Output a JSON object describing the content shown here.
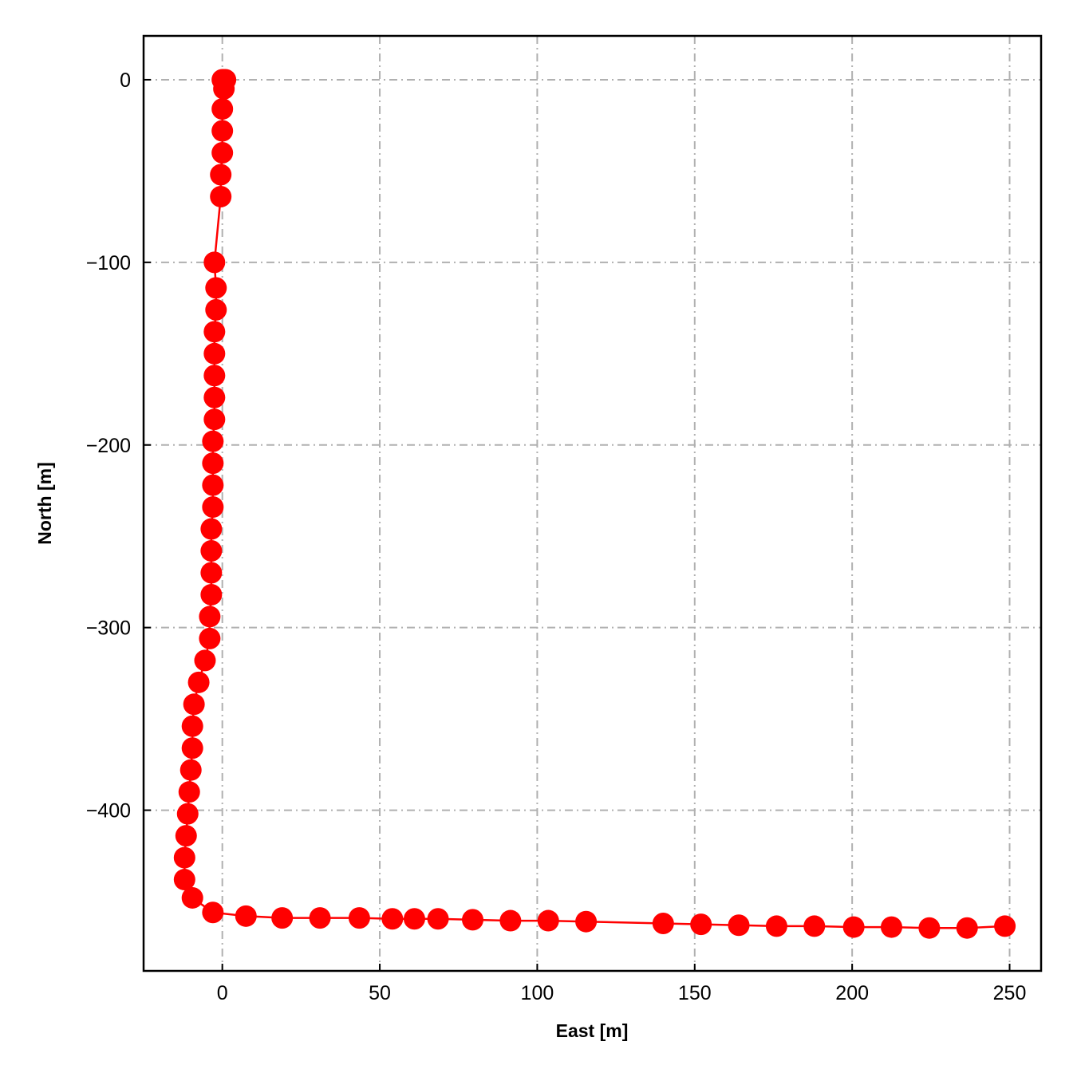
{
  "chart_data": {
    "type": "line",
    "title": "",
    "xlabel": "East [m]",
    "ylabel": "North [m]",
    "xlim": [
      -25,
      260
    ],
    "ylim": [
      -488,
      24
    ],
    "xticks": [
      0,
      50,
      100,
      150,
      200,
      250
    ],
    "yticks": [
      0,
      -100,
      -200,
      -300,
      -400
    ],
    "xtick_labels": [
      "0",
      "50",
      "100",
      "150",
      "200",
      "250"
    ],
    "ytick_labels": [
      "0",
      "−100",
      "−200",
      "−300",
      "−400"
    ],
    "grid": true,
    "grid_style": "dash-dot",
    "legend": "none",
    "series": [
      {
        "color": "#ff0000",
        "marker": "circle",
        "points": [
          [
            0,
            0
          ],
          [
            0.5,
            0
          ],
          [
            1,
            0
          ],
          [
            0.5,
            -5
          ],
          [
            0,
            -16
          ],
          [
            0,
            -28
          ],
          [
            0,
            -40
          ],
          [
            -0.5,
            -52
          ],
          [
            -0.5,
            -64
          ],
          [
            -2.5,
            -100
          ],
          [
            -2,
            -114
          ],
          [
            -2,
            -126
          ],
          [
            -2.5,
            -138
          ],
          [
            -2.5,
            -150
          ],
          [
            -2.5,
            -162
          ],
          [
            -2.5,
            -174
          ],
          [
            -2.5,
            -186
          ],
          [
            -3,
            -198
          ],
          [
            -3,
            -210
          ],
          [
            -3,
            -222
          ],
          [
            -3,
            -234
          ],
          [
            -3.5,
            -246
          ],
          [
            -3.5,
            -258
          ],
          [
            -3.5,
            -270
          ],
          [
            -3.5,
            -282
          ],
          [
            -4,
            -294
          ],
          [
            -4,
            -306
          ],
          [
            -5.5,
            -318
          ],
          [
            -7.5,
            -330
          ],
          [
            -9,
            -342
          ],
          [
            -9.5,
            -354
          ],
          [
            -9.5,
            -366
          ],
          [
            -10,
            -378
          ],
          [
            -10.5,
            -390
          ],
          [
            -11,
            -402
          ],
          [
            -11.5,
            -414
          ],
          [
            -12,
            -426
          ],
          [
            -12,
            -438
          ],
          [
            -9.5,
            -448
          ],
          [
            -3,
            -456
          ],
          [
            7.5,
            -458
          ],
          [
            19,
            -459
          ],
          [
            31,
            -459
          ],
          [
            43.5,
            -459
          ],
          [
            54,
            -459.5
          ],
          [
            61,
            -459.5
          ],
          [
            68.5,
            -459.5
          ],
          [
            79.5,
            -460
          ],
          [
            91.5,
            -460.5
          ],
          [
            103.5,
            -460.5
          ],
          [
            115.5,
            -461
          ],
          [
            140,
            -462
          ],
          [
            152,
            -462.5
          ],
          [
            164,
            -463
          ],
          [
            176,
            -463.5
          ],
          [
            188,
            -463.5
          ],
          [
            200.5,
            -464
          ],
          [
            212.5,
            -464
          ],
          [
            224.5,
            -464.5
          ],
          [
            236.5,
            -464.5
          ],
          [
            248.5,
            -463.5
          ]
        ]
      }
    ]
  }
}
